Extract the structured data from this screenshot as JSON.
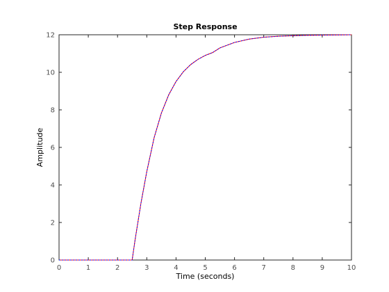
{
  "chart_data": {
    "type": "line",
    "title": "Step Response",
    "xlabel": "Time (seconds)",
    "ylabel": "Amplitude",
    "xlim": [
      0,
      10
    ],
    "ylim": [
      0,
      12
    ],
    "xticks": [
      0,
      1,
      2,
      3,
      4,
      5,
      6,
      7,
      8,
      9,
      10
    ],
    "yticks": [
      0,
      2,
      4,
      6,
      8,
      10,
      12
    ],
    "xtick_labels": [
      "0",
      "1",
      "2",
      "3",
      "4",
      "5",
      "6",
      "7",
      "8",
      "9",
      "10"
    ],
    "ytick_labels": [
      "0",
      "2",
      "4",
      "6",
      "8",
      "10",
      "12"
    ],
    "grid": false,
    "final_value": 12,
    "series": [
      {
        "color": "#ff0000",
        "x": [
          0,
          2.5,
          2.6,
          2.8,
          3.0,
          3.25,
          3.5,
          3.75,
          4.0,
          4.25,
          4.5,
          4.75,
          5.0,
          5.25,
          5.5,
          6.0,
          6.5,
          7.0,
          7.5,
          8.0,
          8.5,
          9.0,
          10.0
        ],
        "y": [
          0,
          0,
          1.07,
          3.02,
          4.71,
          6.51,
          7.83,
          8.8,
          9.51,
          10.03,
          10.41,
          10.69,
          10.9,
          11.05,
          11.3,
          11.59,
          11.77,
          11.87,
          11.92,
          11.95,
          11.97,
          11.98,
          12.0
        ]
      },
      {
        "color": "#0000ff",
        "x": [
          0,
          2.5,
          2.6,
          2.8,
          3.0,
          3.25,
          3.5,
          3.75,
          4.0,
          4.25,
          4.5,
          4.75,
          5.0,
          5.25,
          5.5,
          6.0,
          6.5,
          7.0,
          7.5,
          8.0,
          8.5,
          9.0,
          10.0
        ],
        "y": [
          0,
          0,
          1.07,
          3.02,
          4.71,
          6.51,
          7.83,
          8.8,
          9.51,
          10.03,
          10.41,
          10.69,
          10.9,
          11.05,
          11.3,
          11.59,
          11.77,
          11.87,
          11.92,
          11.95,
          11.97,
          11.98,
          12.0
        ]
      }
    ]
  }
}
